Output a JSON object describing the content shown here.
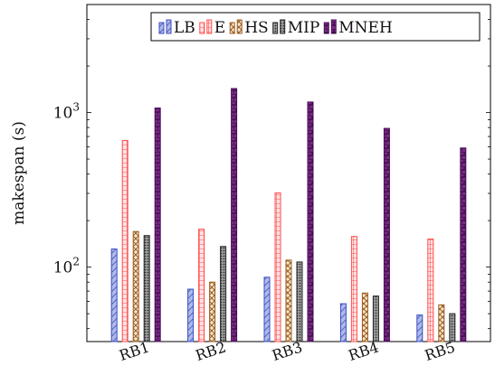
{
  "chart_data": {
    "type": "bar",
    "ylabel": "makespan (s)",
    "xlabel": "",
    "scale": "log",
    "ylim": [
      33,
      5000
    ],
    "yticks": [
      {
        "value": 100,
        "base": "10",
        "exp": "2"
      },
      {
        "value": 1000,
        "base": "10",
        "exp": "3"
      }
    ],
    "categories": [
      "RB1",
      "RB2",
      "RB3",
      "RB4",
      "RB5"
    ],
    "series": [
      {
        "name": "LB",
        "color": "#3b4cc0",
        "fill": "#aebbe8",
        "pattern": "diag",
        "values": [
          131,
          72,
          86,
          58,
          49
        ]
      },
      {
        "name": "E",
        "color": "#ff4d4d",
        "fill": "#ffd0d0",
        "pattern": "grid",
        "values": [
          660,
          176,
          302,
          158,
          152
        ]
      },
      {
        "name": "HS",
        "color": "#9a5d20",
        "fill": "#f3dfc4",
        "pattern": "cross",
        "values": [
          170,
          80,
          111,
          68,
          57
        ]
      },
      {
        "name": "MIP",
        "color": "#222222",
        "fill": "#8a8a8a",
        "pattern": "dots",
        "values": [
          160,
          136,
          108,
          65,
          50
        ]
      },
      {
        "name": "MNEH",
        "color": "#4a0e5a",
        "fill": "#7b2a85",
        "pattern": "bricks",
        "values": [
          1070,
          1430,
          1170,
          790,
          590
        ]
      }
    ],
    "legend_position": "top",
    "grid": false
  }
}
